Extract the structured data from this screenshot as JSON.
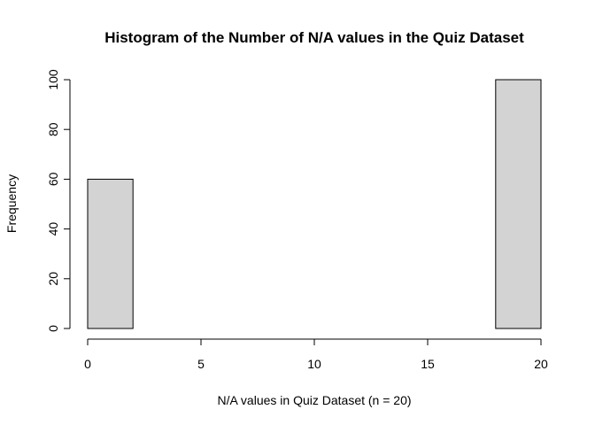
{
  "chart_data": {
    "type": "bar",
    "title": "Histogram of the Number of N/A values in the Quiz Dataset",
    "xlabel": "N/A values in Quiz Dataset (n = 20)",
    "ylabel": "Frequency",
    "xlim": [
      0,
      20
    ],
    "ylim": [
      0,
      100
    ],
    "x_ticks": [
      0,
      5,
      10,
      15,
      20
    ],
    "y_ticks": [
      0,
      20,
      40,
      60,
      80,
      100
    ],
    "bins": [
      {
        "x0": 0,
        "x1": 2,
        "count": 60
      },
      {
        "x0": 2,
        "x1": 4,
        "count": 0
      },
      {
        "x0": 4,
        "x1": 6,
        "count": 0
      },
      {
        "x0": 6,
        "x1": 8,
        "count": 0
      },
      {
        "x0": 8,
        "x1": 10,
        "count": 0
      },
      {
        "x0": 10,
        "x1": 12,
        "count": 0
      },
      {
        "x0": 12,
        "x1": 14,
        "count": 0
      },
      {
        "x0": 14,
        "x1": 16,
        "count": 0
      },
      {
        "x0": 16,
        "x1": 18,
        "count": 0
      },
      {
        "x0": 18,
        "x1": 20,
        "count": 100
      }
    ],
    "bar_color": "#d3d3d3",
    "grid": false,
    "legend": "none"
  }
}
